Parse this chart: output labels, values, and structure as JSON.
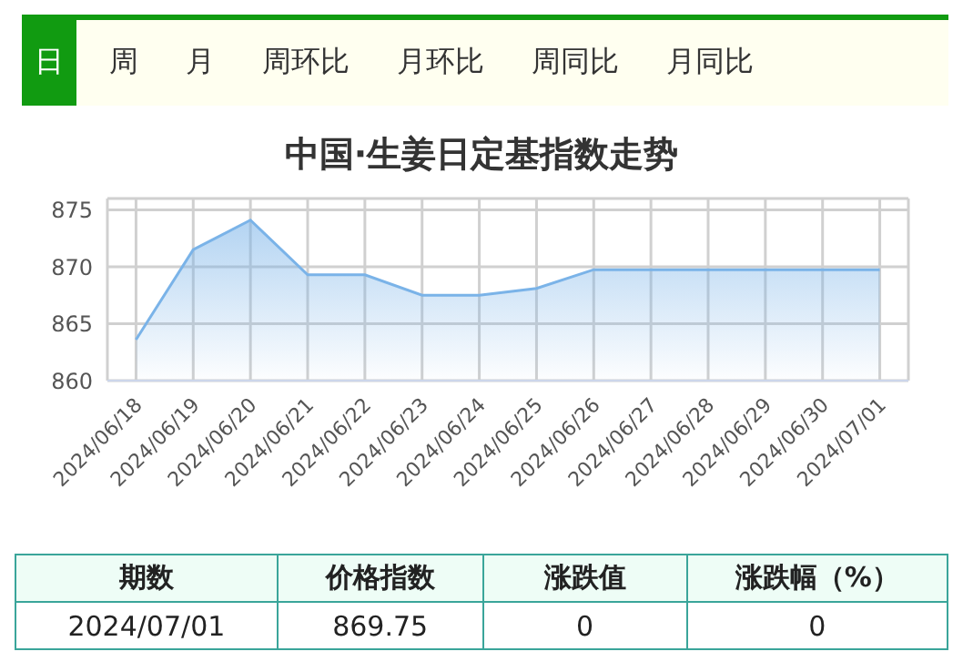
{
  "chart_data": {
    "type": "area",
    "title": "中国·生姜日定基指数走势",
    "categories": [
      "2024/06/18",
      "2024/06/19",
      "2024/06/20",
      "2024/06/21",
      "2024/06/22",
      "2024/06/23",
      "2024/06/24",
      "2024/06/25",
      "2024/06/26",
      "2024/06/27",
      "2024/06/28",
      "2024/06/29",
      "2024/06/30",
      "2024/07/01"
    ],
    "values": [
      863.6,
      871.5,
      874.1,
      869.3,
      869.3,
      867.5,
      867.5,
      868.1,
      869.75,
      869.75,
      869.75,
      869.75,
      869.75,
      869.75
    ],
    "color": "#7ab3e8",
    "ylim": [
      860,
      876
    ],
    "yticks": [
      860,
      865,
      870,
      875
    ],
    "grid": true,
    "annotations": [
      "日",
      "周",
      "月",
      "周环比",
      "月环比",
      "周同比",
      "月同比",
      "期数",
      "价格指数",
      "涨跌值",
      "涨跌幅（%）",
      "2024/07/01",
      "869.75",
      "0",
      "0"
    ]
  }
}
